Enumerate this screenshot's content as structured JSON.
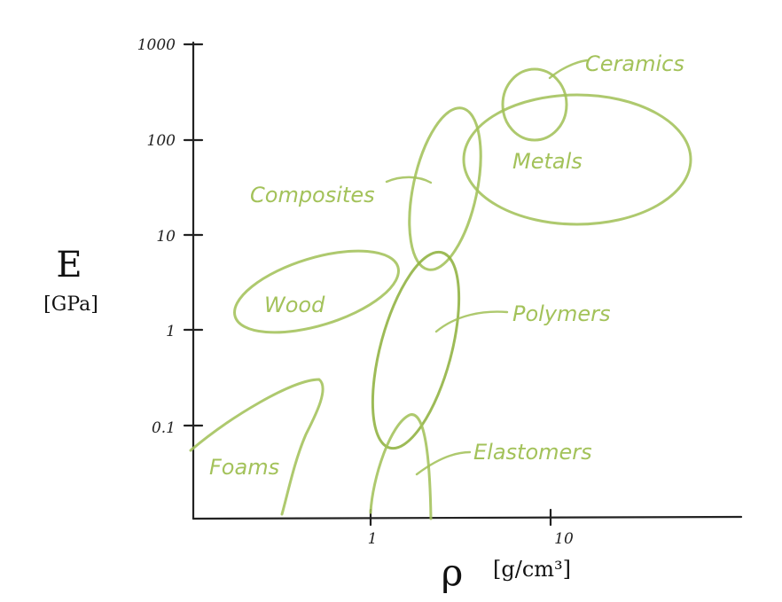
{
  "accent": "#a3c25a",
  "accent_dark": "#8fb240",
  "axes": {
    "y_title": "E",
    "y_unit": "[GPa]",
    "x_title": "ρ",
    "x_unit": "[g/cm³]",
    "y_ticks": [
      "1000",
      "100",
      "10",
      "1",
      "0.1"
    ],
    "x_ticks": [
      "1",
      "10"
    ]
  },
  "regions": {
    "ceramics": "Ceramics",
    "metals": "Metals",
    "composites": "Composites",
    "wood": "Wood",
    "polymers": "Polymers",
    "foams": "Foams",
    "elastomers": "Elastomers"
  }
}
